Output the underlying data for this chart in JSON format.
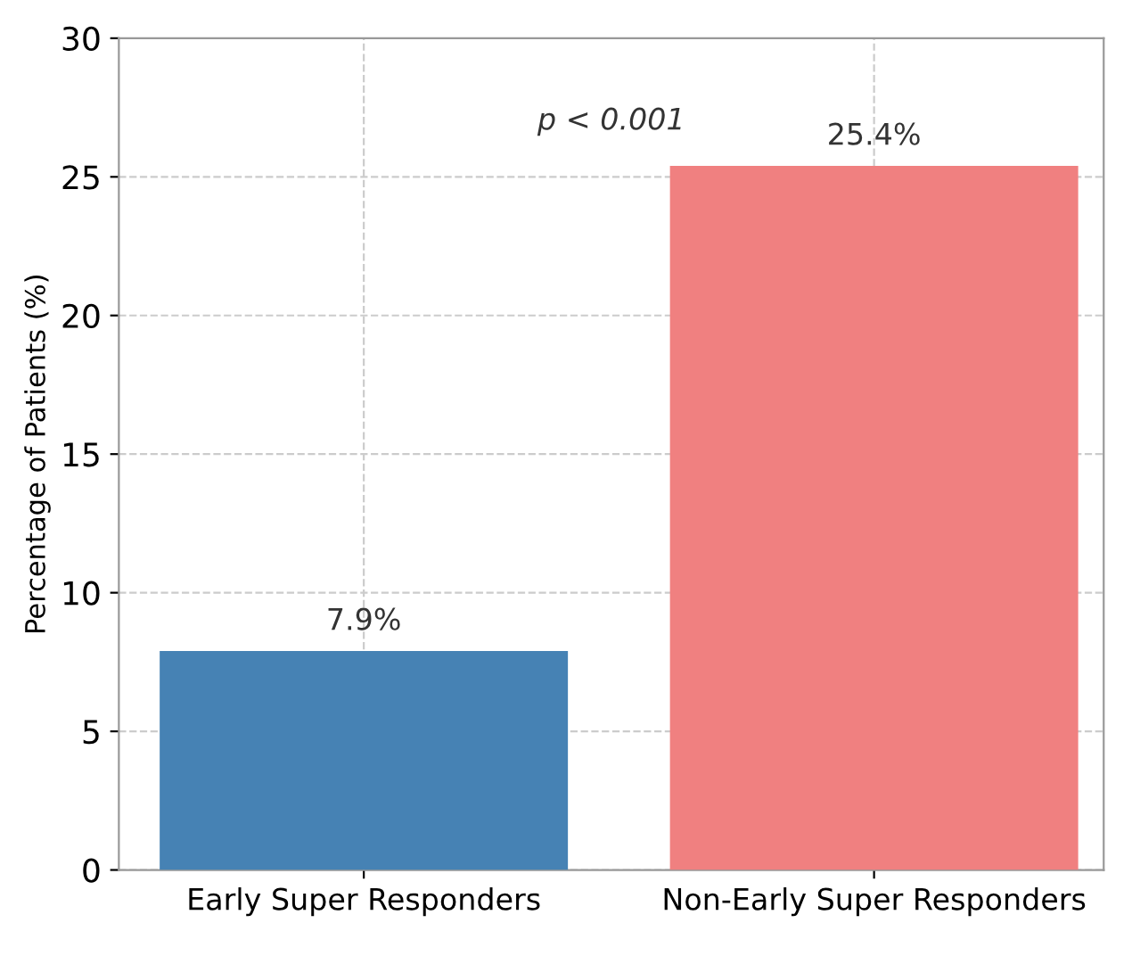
{
  "chart_data": {
    "type": "bar",
    "ylabel": "Percentage of Patients (%)",
    "categories": [
      "Early Super Responders",
      "Non-Early Super Responders"
    ],
    "values": [
      7.9,
      25.4
    ],
    "colors": [
      "#4682b4",
      "#f08080"
    ],
    "value_labels": [
      "7.9%",
      "25.4%"
    ],
    "annotations": [
      "p < 0.001"
    ],
    "ylim": [
      0,
      30
    ],
    "yticks": [
      0,
      5,
      10,
      15,
      20,
      25,
      30
    ],
    "grid": true
  }
}
